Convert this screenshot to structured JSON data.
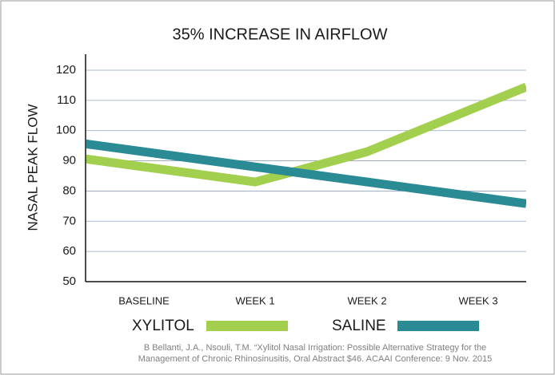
{
  "chart_data": {
    "type": "line",
    "title": "35% INCREASE IN AIRFLOW",
    "ylabel": "NASAL PEAK FLOW",
    "categories": [
      "BASELINE",
      "WEEK 1",
      "WEEK 2",
      "WEEK 3"
    ],
    "series": [
      {
        "name": "XYLITOL",
        "color": "#a3cf4f",
        "values": [
          88,
          83,
          93,
          108
        ]
      },
      {
        "name": "SALINE",
        "color": "#2b8b94",
        "values": [
          93,
          88,
          83,
          78
        ]
      }
    ],
    "ylim": [
      50,
      120
    ],
    "yticks": [
      50,
      60,
      70,
      80,
      90,
      100,
      110,
      120
    ],
    "grid": true,
    "source": [
      "B Bellanti, J.A., Nsouli, T.M. “Xylitol Nasal Irrigation: Possible Alternative Strategy for the",
      "Management of Chronic Rhinosinusitis, Oral Abstract $46. ACAAI Conference: 9 Nov. 2015"
    ]
  }
}
